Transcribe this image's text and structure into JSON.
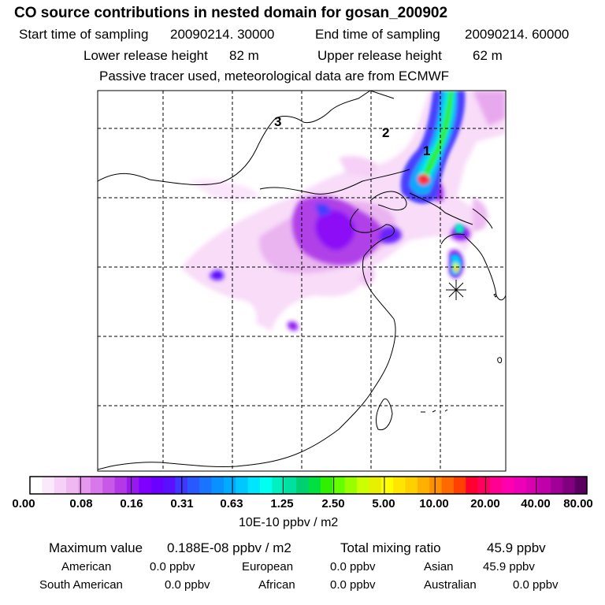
{
  "title": "CO  source contributions in nested domain for gosan_200902",
  "sampling": {
    "start_label": "Start time of sampling",
    "start_value": "20090214. 30000",
    "end_label": "End time of sampling",
    "end_value": "20090214. 60000"
  },
  "release": {
    "lower_label": "Lower release height",
    "lower_value": "82 m",
    "upper_label": "Upper release height",
    "upper_value": "62 m"
  },
  "note": "Passive tracer used, meteorological data are from ECMWF",
  "map": {
    "contour_labels": [
      "1",
      "2",
      "3"
    ],
    "receptor_marker": "asterisk-icon"
  },
  "colorbar": {
    "ticks": [
      "0.00",
      "0.08",
      "0.16",
      "0.31",
      "0.63",
      "1.25",
      "2.50",
      "5.00",
      "10.00",
      "20.00",
      "40.00",
      "80.00"
    ],
    "unit": "10E-10 ppbv / m2",
    "colors": [
      "#ffffff",
      "#fbe8fb",
      "#f6d0f6",
      "#f0b8f0",
      "#e698ec",
      "#d878ea",
      "#c858e8",
      "#b438e6",
      "#9818f0",
      "#8000ff",
      "#6a00ff",
      "#5a10ff",
      "#3f36ff",
      "#2a58ff",
      "#1a74ff",
      "#0a90ff",
      "#00aaff",
      "#00c8ff",
      "#00e6ff",
      "#00fff0",
      "#00f0c0",
      "#00e0a0",
      "#00d070",
      "#00e040",
      "#30f000",
      "#66ff00",
      "#99ff00",
      "#ccff00",
      "#e8f000",
      "#ffff00",
      "#ffe600",
      "#ffd000",
      "#ffb000",
      "#ff9000",
      "#ff6a00",
      "#ff4000",
      "#ff0030",
      "#ff0060",
      "#ff0090",
      "#ff00b0",
      "#ee00b8",
      "#d800b0",
      "#c000a8",
      "#a00098",
      "#800080",
      "#5a0060"
    ]
  },
  "summary": {
    "max_label": "Maximum value",
    "max_value": "0.188E-08 ppbv / m2",
    "total_label": "Total mixing ratio",
    "total_value": "45.9 ppbv",
    "regions": [
      {
        "name": "American",
        "value": "0.0 ppbv"
      },
      {
        "name": "European",
        "value": "0.0 ppbv"
      },
      {
        "name": "Asian",
        "value": "45.9 ppbv"
      },
      {
        "name": "South American",
        "value": "0.0 ppbv"
      },
      {
        "name": "African",
        "value": "0.0 ppbv"
      },
      {
        "name": "Australian",
        "value": "0.0 ppbv"
      }
    ]
  }
}
